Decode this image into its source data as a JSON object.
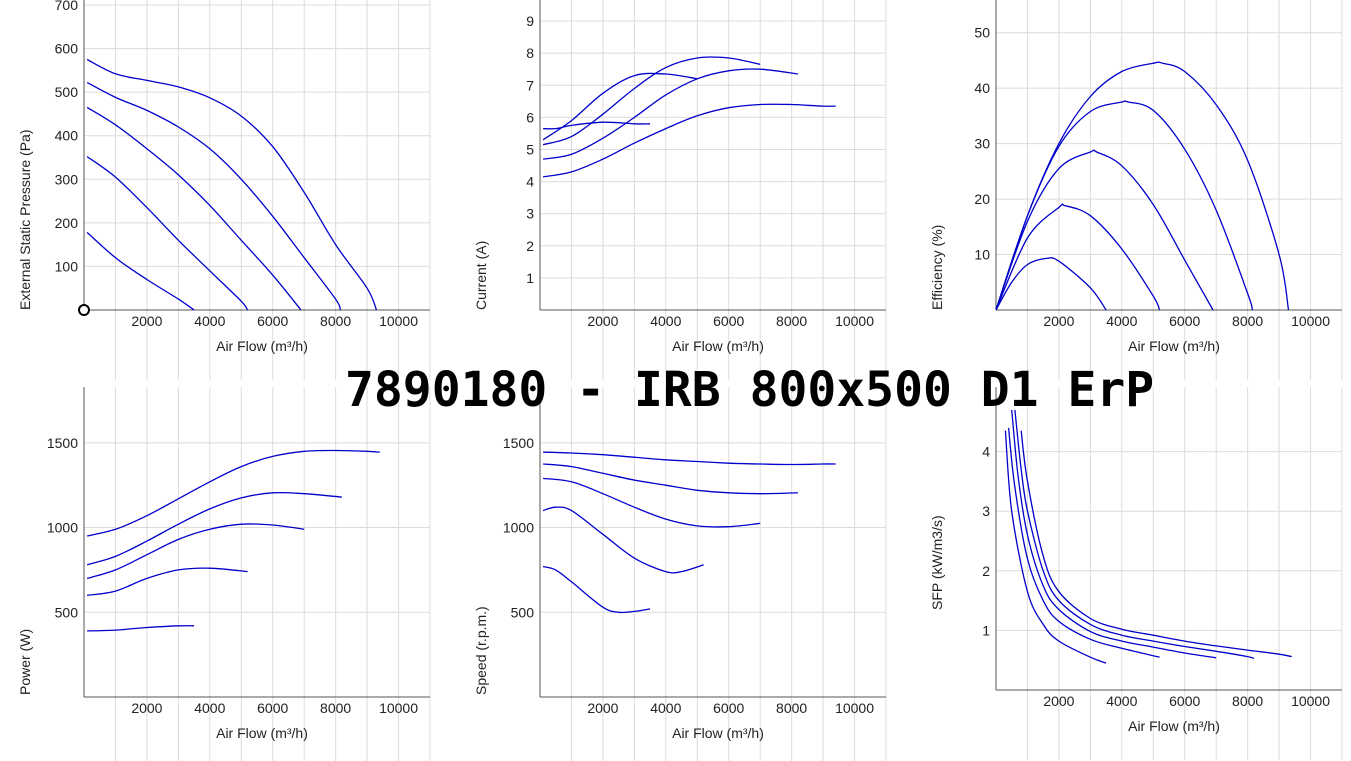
{
  "title": "7890180 -  IRB 800x500 D1 ErP",
  "colors": {
    "curve": "#0000cc",
    "grid": "#dcdcdc",
    "axis": "#555555",
    "text": "#222222"
  },
  "chart_data": [
    {
      "type": "line",
      "xlabel": "Air Flow (m³/h)",
      "ylabel": "External Static Pressure (Pa)",
      "xlim": [
        0,
        11000
      ],
      "ylim": [
        0,
        700
      ],
      "xticks": [
        "2000",
        "4000",
        "6000",
        "8000",
        "10000"
      ],
      "yticks": [
        "100",
        "200",
        "300",
        "400",
        "500",
        "600",
        "700"
      ],
      "operating_point": [
        0,
        0
      ],
      "series": [
        {
          "x": [
            100,
            1000,
            2000,
            3000,
            4000,
            5000,
            6000,
            7000,
            8000,
            9000,
            9300
          ],
          "y": [
            575,
            542,
            527,
            512,
            487,
            445,
            375,
            270,
            150,
            50,
            0
          ]
        },
        {
          "x": [
            100,
            1000,
            2000,
            3000,
            4000,
            5000,
            6000,
            7000,
            8000,
            8150
          ],
          "y": [
            522,
            488,
            458,
            420,
            370,
            300,
            215,
            120,
            25,
            0
          ]
        },
        {
          "x": [
            100,
            1000,
            2000,
            3000,
            4000,
            5000,
            6000,
            6900
          ],
          "y": [
            465,
            425,
            370,
            310,
            240,
            160,
            80,
            0
          ]
        },
        {
          "x": [
            100,
            1000,
            2000,
            3000,
            4000,
            5000,
            5200
          ],
          "y": [
            352,
            305,
            235,
            160,
            90,
            20,
            0
          ]
        },
        {
          "x": [
            100,
            1000,
            2000,
            3000,
            3500
          ],
          "y": [
            178,
            120,
            70,
            25,
            0
          ]
        }
      ]
    },
    {
      "type": "line",
      "xlabel": "Air Flow (m³/h)",
      "ylabel": "Current (A)",
      "xlim": [
        0,
        11000
      ],
      "ylim": [
        0,
        9.5
      ],
      "xticks": [
        "2000",
        "4000",
        "6000",
        "8000",
        "10000"
      ],
      "yticks": [
        "1",
        "2",
        "3",
        "4",
        "5",
        "6",
        "7",
        "8",
        "9"
      ],
      "series": [
        {
          "x": [
            100,
            1000,
            2000,
            3000,
            4000,
            5000,
            6000,
            7000,
            8000,
            9000,
            9400
          ],
          "y": [
            4.15,
            4.3,
            4.7,
            5.2,
            5.65,
            6.05,
            6.3,
            6.4,
            6.4,
            6.35,
            6.35
          ]
        },
        {
          "x": [
            100,
            1000,
            2000,
            3000,
            4000,
            5000,
            6000,
            7000,
            8200
          ],
          "y": [
            4.7,
            4.85,
            5.35,
            6.0,
            6.7,
            7.2,
            7.45,
            7.5,
            7.35
          ]
        },
        {
          "x": [
            100,
            1000,
            2000,
            3000,
            4000,
            5000,
            6000,
            7000
          ],
          "y": [
            5.15,
            5.4,
            6.1,
            6.9,
            7.55,
            7.85,
            7.85,
            7.65
          ]
        },
        {
          "x": [
            100,
            1000,
            2000,
            3000,
            4000,
            5000
          ],
          "y": [
            5.3,
            5.9,
            6.75,
            7.3,
            7.35,
            7.2
          ]
        },
        {
          "x": [
            100,
            500,
            1000,
            2000,
            3000,
            3500
          ],
          "y": [
            5.65,
            5.65,
            5.75,
            5.85,
            5.8,
            5.8
          ]
        }
      ]
    },
    {
      "type": "line",
      "xlabel": "Air Flow (m³/h)",
      "ylabel": "Efficiency (%)",
      "xlim": [
        0,
        11000
      ],
      "ylim": [
        0,
        55
      ],
      "xticks": [
        "2000",
        "4000",
        "6000",
        "8000",
        "10000"
      ],
      "yticks": [
        "10",
        "20",
        "30",
        "40",
        "50"
      ],
      "series": [
        {
          "x": [
            0,
            1000,
            2000,
            3000,
            4000,
            5000,
            5300,
            6000,
            7000,
            8000,
            9000,
            9300
          ],
          "y": [
            0,
            17,
            30,
            38.5,
            43,
            44.5,
            44.5,
            43,
            37,
            27,
            10,
            0
          ]
        },
        {
          "x": [
            0,
            1000,
            2000,
            3000,
            4000,
            4200,
            5000,
            6000,
            7000,
            8000,
            8150
          ],
          "y": [
            0,
            17,
            29.5,
            35.8,
            37.5,
            37.5,
            36,
            29,
            18,
            3,
            0
          ]
        },
        {
          "x": [
            0,
            1000,
            2000,
            3000,
            3200,
            4000,
            5000,
            6000,
            6900
          ],
          "y": [
            0,
            16,
            25.5,
            28.5,
            28.5,
            26,
            19,
            9,
            0
          ]
        },
        {
          "x": [
            0,
            1000,
            2000,
            2200,
            3000,
            4000,
            5000,
            5200
          ],
          "y": [
            0,
            13,
            18.5,
            18.8,
            17,
            11,
            2.5,
            0
          ]
        },
        {
          "x": [
            0,
            500,
            1000,
            1600,
            2000,
            3000,
            3500
          ],
          "y": [
            0,
            5,
            8.2,
            9.3,
            8.8,
            4,
            0
          ]
        }
      ]
    },
    {
      "type": "line",
      "xlabel": "Air Flow (m³/h)",
      "ylabel": "Power (W)",
      "xlim": [
        0,
        11000
      ],
      "ylim": [
        0,
        1800
      ],
      "xticks": [
        "2000",
        "4000",
        "6000",
        "8000",
        "10000"
      ],
      "yticks": [
        "500",
        "1000",
        "1500"
      ],
      "series": [
        {
          "x": [
            100,
            1000,
            2000,
            3000,
            4000,
            5000,
            6000,
            7000,
            8000,
            9000,
            9400
          ],
          "y": [
            950,
            990,
            1070,
            1170,
            1270,
            1360,
            1420,
            1450,
            1455,
            1450,
            1445
          ]
        },
        {
          "x": [
            100,
            1000,
            2000,
            3000,
            4000,
            5000,
            6000,
            7000,
            8200
          ],
          "y": [
            780,
            830,
            920,
            1020,
            1110,
            1175,
            1205,
            1200,
            1180
          ]
        },
        {
          "x": [
            100,
            1000,
            2000,
            3000,
            4000,
            5000,
            6000,
            7000
          ],
          "y": [
            700,
            750,
            840,
            930,
            990,
            1020,
            1015,
            990
          ]
        },
        {
          "x": [
            100,
            1000,
            2000,
            3000,
            4000,
            5200
          ],
          "y": [
            600,
            625,
            700,
            750,
            760,
            740
          ]
        },
        {
          "x": [
            100,
            1000,
            2000,
            3000,
            3500
          ],
          "y": [
            390,
            395,
            410,
            420,
            420
          ]
        }
      ]
    },
    {
      "type": "line",
      "xlabel": "Air Flow (m³/h)",
      "ylabel": "Speed (r.p.m.)",
      "xlim": [
        0,
        11000
      ],
      "ylim": [
        0,
        1800
      ],
      "xticks": [
        "2000",
        "4000",
        "6000",
        "8000",
        "10000"
      ],
      "yticks": [
        "500",
        "1000",
        "1500"
      ],
      "series": [
        {
          "x": [
            100,
            1000,
            2000,
            3000,
            4000,
            5000,
            6000,
            7000,
            8000,
            9000,
            9400
          ],
          "y": [
            1445,
            1440,
            1430,
            1415,
            1400,
            1390,
            1380,
            1375,
            1372,
            1375,
            1375
          ]
        },
        {
          "x": [
            100,
            1000,
            2000,
            3000,
            4000,
            5000,
            6000,
            7000,
            8200
          ],
          "y": [
            1375,
            1360,
            1320,
            1280,
            1250,
            1220,
            1205,
            1200,
            1205
          ]
        },
        {
          "x": [
            100,
            1000,
            2000,
            3000,
            4000,
            5000,
            6000,
            7000
          ],
          "y": [
            1290,
            1270,
            1200,
            1120,
            1050,
            1010,
            1005,
            1025
          ]
        },
        {
          "x": [
            100,
            500,
            1000,
            2000,
            3000,
            4000,
            4500,
            5200
          ],
          "y": [
            1100,
            1120,
            1100,
            960,
            820,
            740,
            740,
            780
          ]
        },
        {
          "x": [
            100,
            500,
            1000,
            2000,
            2500,
            3000,
            3500
          ],
          "y": [
            770,
            750,
            680,
            530,
            500,
            505,
            520
          ]
        }
      ]
    },
    {
      "type": "line",
      "xlabel": "Air Flow (m³/h)",
      "ylabel": "SFP (kW/m3/s)",
      "xlim": [
        0,
        11000
      ],
      "ylim": [
        0,
        5
      ],
      "xticks": [
        "2000",
        "4000",
        "6000",
        "8000",
        "10000"
      ],
      "yticks": [
        "1",
        "2",
        "3",
        "4"
      ],
      "series": [
        {
          "x": [
            800,
            1000,
            1500,
            2000,
            3000,
            4000,
            5000,
            6000,
            7000,
            8000,
            9000,
            9400
          ],
          "y": [
            4.35,
            3.5,
            2.25,
            1.65,
            1.2,
            1.02,
            0.92,
            0.82,
            0.74,
            0.67,
            0.6,
            0.56
          ]
        },
        {
          "x": [
            600,
            800,
            1000,
            1500,
            2000,
            3000,
            4000,
            5000,
            6000,
            7000,
            8000,
            8200
          ],
          "y": [
            4.7,
            3.7,
            3.0,
            2.0,
            1.5,
            1.1,
            0.92,
            0.82,
            0.73,
            0.65,
            0.56,
            0.53
          ]
        },
        {
          "x": [
            500,
            700,
            1000,
            1500,
            2000,
            3000,
            4000,
            5000,
            6000,
            7000
          ],
          "y": [
            4.7,
            3.6,
            2.6,
            1.75,
            1.35,
            0.98,
            0.82,
            0.72,
            0.62,
            0.54
          ]
        },
        {
          "x": [
            400,
            600,
            1000,
            1500,
            2000,
            3000,
            4000,
            5200
          ],
          "y": [
            4.4,
            3.4,
            2.2,
            1.5,
            1.15,
            0.85,
            0.7,
            0.55
          ]
        },
        {
          "x": [
            300,
            500,
            1000,
            1500,
            2000,
            3000,
            3500
          ],
          "y": [
            4.35,
            3.0,
            1.65,
            1.1,
            0.82,
            0.55,
            0.45
          ]
        }
      ]
    }
  ]
}
